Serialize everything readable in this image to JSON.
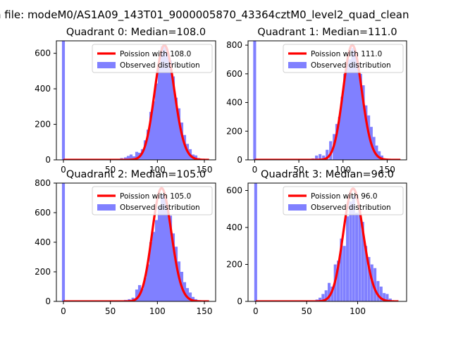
{
  "suptitle": "n file: modeM0/AS1A09_143T01_9000005870_43364cztM0_level2_quad_clean",
  "colors": {
    "fit": "#ff0000",
    "observed": "#8080ff",
    "frame": "#000000"
  },
  "chart_data": [
    {
      "type": "bar",
      "title": "Quadrant 0: Median=108.0",
      "median": 108.0,
      "xlim": [
        -7.5,
        162
      ],
      "ylim": [
        0,
        670
      ],
      "xticks": [
        0,
        50,
        100,
        150
      ],
      "yticks": [
        0,
        200,
        400,
        600
      ],
      "legend": [
        "Poission with 108.0",
        "Observed distribution"
      ],
      "legend_position": "upper right",
      "bin_width": 3.1,
      "zero_bin_value": 670,
      "observed": {
        "x": [
          58,
          62,
          66,
          69,
          72,
          75,
          78,
          81,
          84,
          87,
          90,
          93,
          96,
          99,
          102,
          105,
          108,
          111,
          114,
          117,
          120,
          123,
          126,
          129,
          132,
          135,
          138,
          141,
          144,
          147,
          150
        ],
        "values": [
          5,
          10,
          14,
          22,
          30,
          20,
          45,
          40,
          60,
          110,
          170,
          270,
          330,
          430,
          520,
          640,
          650,
          600,
          560,
          470,
          350,
          290,
          210,
          140,
          90,
          60,
          30,
          25,
          10,
          5,
          3
        ]
      },
      "poisson_lambda": 108.0,
      "fit_x_range": [
        0,
        155
      ],
      "fit_scale": 645
    },
    {
      "type": "bar",
      "title": "Quadrant 1: Median=111.0",
      "median": 111.0,
      "xlim": [
        -7.5,
        172
      ],
      "ylim": [
        0,
        830
      ],
      "xticks": [
        0,
        50,
        100,
        150
      ],
      "yticks": [
        0,
        200,
        400,
        600,
        800
      ],
      "legend": [
        "Poission with 111.0",
        "Observed distribution"
      ],
      "legend_position": "upper right",
      "bin_width": 3.3,
      "zero_bin_value": 830,
      "observed": {
        "x": [
          62,
          66,
          70,
          74,
          78,
          82,
          86,
          90,
          93,
          96,
          99,
          102,
          105,
          108,
          111,
          114,
          117,
          120,
          123,
          126,
          129,
          132,
          135,
          138,
          141,
          144,
          148
        ],
        "values": [
          5,
          10,
          30,
          40,
          30,
          70,
          130,
          180,
          250,
          300,
          440,
          600,
          690,
          700,
          780,
          750,
          680,
          600,
          520,
          380,
          310,
          230,
          160,
          100,
          60,
          30,
          10
        ]
      },
      "poisson_lambda": 111.0,
      "fit_x_range": [
        0,
        165
      ],
      "fit_scale": 800
    },
    {
      "type": "bar",
      "title": "Quadrant 2: Median=105.0",
      "median": 105.0,
      "xlim": [
        -7.5,
        162
      ],
      "ylim": [
        0,
        800
      ],
      "xticks": [
        0,
        50,
        100,
        150
      ],
      "yticks": [
        0,
        200,
        400,
        600,
        800
      ],
      "legend": [
        "Poission with 105.0",
        "Observed distribution"
      ],
      "legend_position": "upper right",
      "bin_width": 3.1,
      "zero_bin_value": 800,
      "observed": {
        "x": [
          62,
          66,
          70,
          74,
          78,
          81,
          84,
          87,
          90,
          93,
          96,
          99,
          102,
          105,
          108,
          111,
          114,
          117,
          120,
          123,
          126,
          129,
          132,
          135,
          138,
          141,
          144,
          148
        ],
        "values": [
          5,
          10,
          15,
          25,
          80,
          110,
          85,
          160,
          250,
          400,
          470,
          550,
          640,
          720,
          700,
          630,
          580,
          460,
          370,
          270,
          200,
          130,
          90,
          60,
          30,
          15,
          8,
          4
        ]
      },
      "poisson_lambda": 105.0,
      "fit_x_range": [
        0,
        155
      ],
      "fit_scale": 765
    },
    {
      "type": "bar",
      "title": "Quadrant 3: Median=96.0",
      "median": 96.0,
      "xlim": [
        -7.5,
        148
      ],
      "ylim": [
        0,
        640
      ],
      "xticks": [
        0,
        50,
        100
      ],
      "yticks": [
        0,
        200,
        400,
        600
      ],
      "legend": [
        "Poission with 96.0",
        "Observed distribution"
      ],
      "legend_position": "upper right",
      "bin_width": 2.8,
      "zero_bin_value": 640,
      "observed": {
        "x": [
          52,
          56,
          60,
          63,
          66,
          69,
          72,
          75,
          78,
          81,
          84,
          87,
          90,
          93,
          96,
          99,
          102,
          105,
          108,
          111,
          114,
          117,
          120,
          123,
          126,
          129,
          132,
          135
        ],
        "values": [
          3,
          5,
          10,
          20,
          40,
          60,
          100,
          80,
          200,
          220,
          340,
          300,
          460,
          540,
          570,
          480,
          500,
          430,
          300,
          240,
          200,
          180,
          110,
          80,
          45,
          40,
          15,
          5
        ]
      },
      "poisson_lambda": 96.0,
      "fit_x_range": [
        0,
        140
      ],
      "fit_scale": 610
    }
  ]
}
